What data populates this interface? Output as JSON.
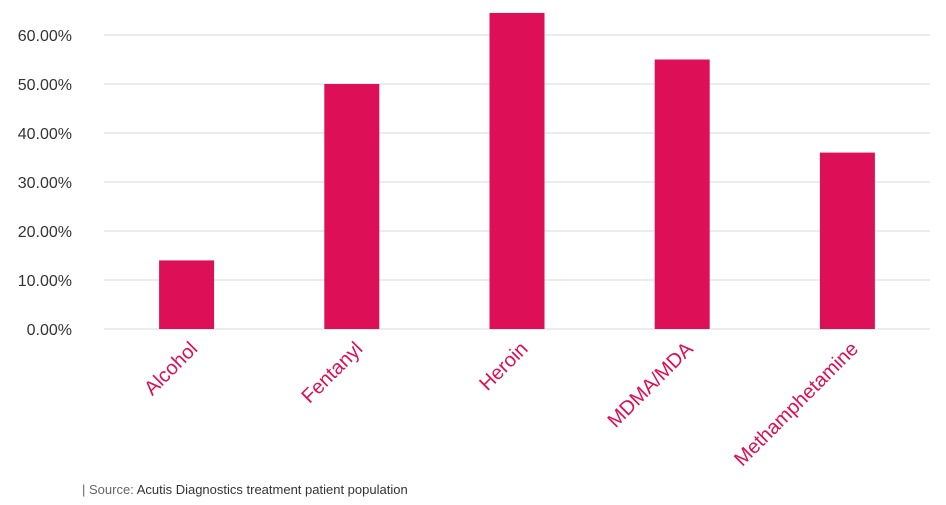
{
  "chart_data": {
    "type": "bar",
    "categories": [
      "Alcohol",
      "Fentanyl",
      "Heroin",
      "MDMA/MDA",
      "Methamphetamine"
    ],
    "values": [
      14.0,
      50.0,
      64.5,
      55.0,
      36.0
    ],
    "ylim": [
      0,
      65
    ],
    "y_ticks": [
      0,
      10,
      20,
      30,
      40,
      50,
      60
    ],
    "y_tick_labels": [
      "0.00%",
      "10.00%",
      "20.00%",
      "30.00%",
      "40.00%",
      "50.00%",
      "60.00%"
    ],
    "title": "",
    "xlabel": "",
    "ylabel": "",
    "grid": true,
    "legend": "none",
    "bar_color": "#dc0f57",
    "category_label_color": "#dc0f57",
    "grid_color": "#d9d9d9",
    "tick_label_color": "#333333"
  },
  "source": {
    "prefix": "| Source: ",
    "text": "Acutis Diagnostics treatment patient population"
  }
}
